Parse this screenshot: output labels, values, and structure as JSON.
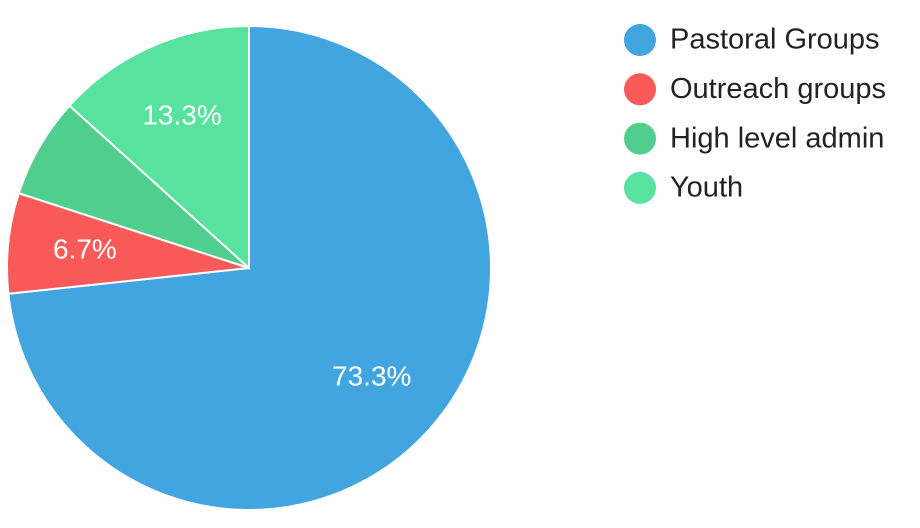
{
  "chart_data": {
    "type": "pie",
    "categories": [
      "Pastoral Groups",
      "Outreach groups",
      "High level admin",
      "Youth"
    ],
    "values": [
      73.3,
      6.7,
      6.7,
      13.3
    ],
    "value_labels": [
      "73.3%",
      "6.7%",
      null,
      "13.3%"
    ],
    "colors": [
      "#42a5e0",
      "#f85a5a",
      "#4fce8e",
      "#57e39e"
    ]
  }
}
